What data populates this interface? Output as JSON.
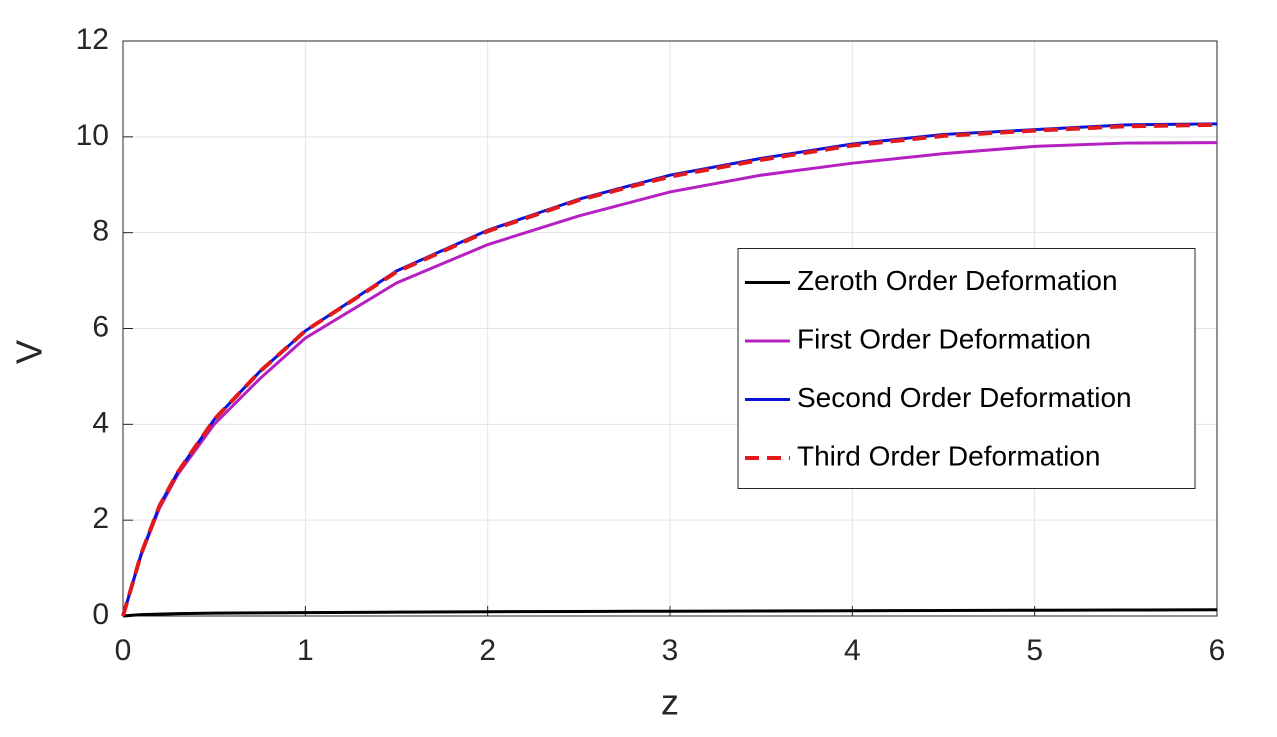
{
  "chart_data": {
    "type": "line",
    "xlabel": "z",
    "ylabel": "V",
    "x": [
      0,
      0.1,
      0.2,
      0.3,
      0.5,
      0.75,
      1,
      1.5,
      2,
      2.5,
      3,
      3.5,
      4,
      4.5,
      5,
      5.5,
      6
    ],
    "series": [
      {
        "name": "Zeroth Order Deformation",
        "color": "#000000",
        "linestyle": "solid",
        "values": [
          0,
          0.03,
          0.04,
          0.05,
          0.06,
          0.065,
          0.07,
          0.08,
          0.09,
          0.095,
          0.1,
          0.105,
          0.11,
          0.115,
          0.12,
          0.125,
          0.13
        ]
      },
      {
        "name": "First Order Deformation",
        "color": "#b61fc1",
        "linestyle": "solid",
        "values": [
          0,
          1.28,
          2.25,
          2.95,
          4.0,
          4.95,
          5.8,
          6.95,
          7.75,
          8.35,
          8.85,
          9.2,
          9.45,
          9.65,
          9.8,
          9.87,
          9.88
        ]
      },
      {
        "name": "Second Order Deformation",
        "color": "#0a14d6",
        "linestyle": "solid",
        "values": [
          0,
          1.3,
          2.3,
          3.0,
          4.1,
          5.1,
          5.95,
          7.2,
          8.05,
          8.7,
          9.2,
          9.55,
          9.85,
          10.05,
          10.15,
          10.25,
          10.27
        ]
      },
      {
        "name": "Third Order Deformation",
        "color": "#e31a1c",
        "linestyle": "dashed",
        "values": [
          0,
          1.3,
          2.3,
          3.0,
          4.1,
          5.1,
          5.95,
          7.18,
          8.03,
          8.68,
          9.17,
          9.52,
          9.82,
          10.02,
          10.13,
          10.22,
          10.25
        ]
      }
    ],
    "xlim": [
      0,
      6
    ],
    "xticks": [
      0,
      1,
      2,
      3,
      4,
      5,
      6
    ],
    "ylim": [
      0,
      12
    ],
    "yticks": [
      0,
      2,
      4,
      6,
      8,
      10,
      12
    ],
    "grid": true,
    "legend": "right"
  }
}
